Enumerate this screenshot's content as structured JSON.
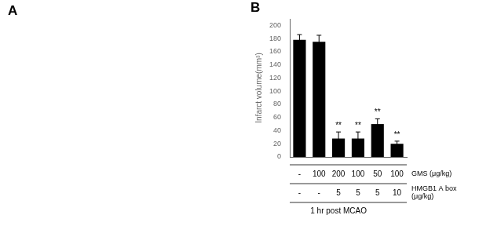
{
  "chart_data": {
    "type": "bar",
    "panel_labels": [
      "A",
      "B"
    ],
    "ylabel": "Infarct volume(mm³)",
    "categories": [
      null,
      null,
      null,
      null,
      null,
      null
    ],
    "values": [
      178,
      175,
      28,
      28,
      50,
      20
    ],
    "errors": [
      8,
      10,
      10,
      10,
      8,
      4
    ],
    "color": "#000000",
    "significance_labels": [
      null,
      null,
      "**",
      "**",
      "**",
      "**"
    ],
    "ylim": [
      0,
      210
    ],
    "yticks": [
      0,
      20,
      40,
      60,
      80,
      100,
      120,
      140,
      160,
      180,
      200
    ],
    "grid": false,
    "tick_labels": "y",
    "table": {
      "rows": [
        {
          "label": [
            "GMS (μg/kg)"
          ],
          "cells": [
            "-",
            "100",
            "200",
            "100",
            "50",
            "100"
          ]
        },
        {
          "label": [
            "HMGB1 A box",
            "(μg/kg)"
          ],
          "cells": [
            "-",
            "-",
            "5",
            "5",
            "5",
            "10"
          ]
        }
      ],
      "span_label": {
        "text": "1 hr post MCAO",
        "from": 0,
        "to": 4
      }
    }
  }
}
